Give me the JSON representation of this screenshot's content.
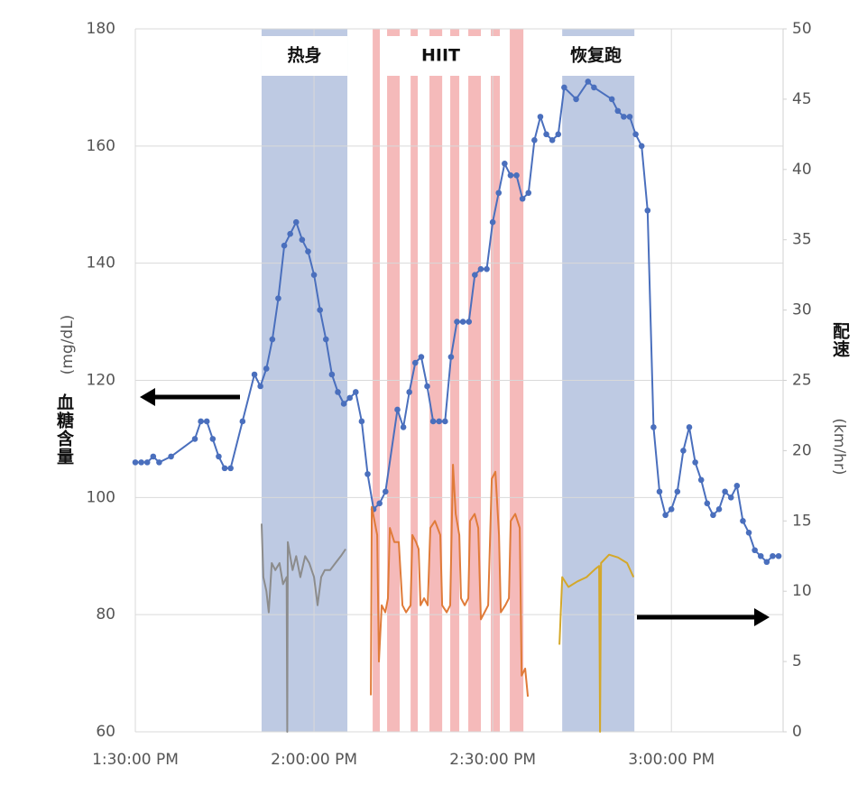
{
  "chart_data": {
    "type": "line",
    "y_label": "血糖含量",
    "y_unit": "(mg/dL)",
    "y2_label": "配速",
    "y2_unit": "(km/hr)",
    "xlim": [
      "13:30:00",
      "15:18:45"
    ],
    "xticks": [
      {
        "value": "13:30:00",
        "label": "1:30:00 PM"
      },
      {
        "value": "14:00:00",
        "label": "2:00:00 PM"
      },
      {
        "value": "14:30:00",
        "label": "2:30:00 PM"
      },
      {
        "value": "15:00:00",
        "label": "3:00:00 PM"
      }
    ],
    "ylim": [
      60,
      180
    ],
    "yticks": [
      60,
      80,
      100,
      120,
      140,
      160,
      180
    ],
    "y2lim": [
      0,
      50
    ],
    "y2ticks": [
      0,
      5,
      10,
      15,
      20,
      25,
      30,
      35,
      40,
      45,
      50
    ],
    "grid": true,
    "annotations": [
      {
        "text": "热身"
      },
      {
        "text": "HIIT"
      },
      {
        "text": "恢复跑"
      }
    ],
    "bands": [
      {
        "start": "13:51:12",
        "end": "14:05:36",
        "color": "#b7c4e0"
      },
      {
        "start": "14:09:51",
        "end": "14:11:03",
        "color": "#f4b3b3"
      },
      {
        "start": "14:12:16",
        "end": "14:14:23",
        "color": "#f4b3b3"
      },
      {
        "start": "14:16:13",
        "end": "14:17:25",
        "color": "#f4b3b3"
      },
      {
        "start": "14:19:23",
        "end": "14:21:31",
        "color": "#f4b3b3"
      },
      {
        "start": "14:22:52",
        "end": "14:24:23",
        "color": "#f4b3b3"
      },
      {
        "start": "14:25:54",
        "end": "14:28:01",
        "color": "#f4b3b3"
      },
      {
        "start": "14:29:41",
        "end": "14:31:12",
        "color": "#f4b3b3"
      },
      {
        "start": "14:32:52",
        "end": "14:35:09",
        "color": "#f4b3b3"
      },
      {
        "start": "14:41:40",
        "end": "14:53:47",
        "color": "#b7c4e0"
      }
    ],
    "series": [
      {
        "color": "#4a6fbd",
        "markers": true,
        "x": [
          "13:30:00",
          "13:31:00",
          "13:32:00",
          "13:33:00",
          "13:34:00",
          "13:36:00",
          "13:40:00",
          "13:41:00",
          "13:42:00",
          "13:43:00",
          "13:44:00",
          "13:45:00",
          "13:46:00",
          "13:48:00",
          "13:50:00",
          "13:51:00",
          "13:52:00",
          "13:53:00",
          "13:54:00",
          "13:55:00",
          "13:56:00",
          "13:57:00",
          "13:58:00",
          "13:59:00",
          "14:00:00",
          "14:01:00",
          "14:02:00",
          "14:03:00",
          "14:04:00",
          "14:05:00",
          "14:06:00",
          "14:07:00",
          "14:08:00",
          "14:09:00",
          "14:10:00",
          "14:11:00",
          "14:12:00",
          "14:14:00",
          "14:15:00",
          "14:16:00",
          "14:17:00",
          "14:18:00",
          "14:19:00",
          "14:20:00",
          "14:21:00",
          "14:22:00",
          "14:23:00",
          "14:24:00",
          "14:25:00",
          "14:26:00",
          "14:27:00",
          "14:28:00",
          "14:29:00",
          "14:30:00",
          "14:31:00",
          "14:32:00",
          "14:33:00",
          "14:34:00",
          "14:35:00",
          "14:36:00",
          "14:37:00",
          "14:38:00",
          "14:39:00",
          "14:40:00",
          "14:41:00",
          "14:42:00",
          "14:44:00",
          "14:46:00",
          "14:47:00",
          "14:50:00",
          "14:51:00",
          "14:52:00",
          "14:53:00",
          "14:54:00",
          "14:55:00",
          "14:56:00",
          "14:57:00",
          "14:58:00",
          "14:59:00",
          "15:00:00",
          "15:01:00",
          "15:02:00",
          "15:03:00",
          "15:04:00",
          "15:05:00",
          "15:06:00",
          "15:07:00",
          "15:08:00",
          "15:09:00",
          "15:10:00",
          "15:11:00",
          "15:12:00",
          "15:13:00",
          "15:14:00",
          "15:15:00",
          "15:16:00",
          "15:17:00",
          "15:18:00"
        ],
        "values": [
          106,
          106,
          106,
          107,
          106,
          107,
          110,
          113,
          113,
          110,
          107,
          105,
          105,
          113,
          121,
          119,
          122,
          127,
          134,
          143,
          145,
          147,
          144,
          142,
          138,
          132,
          127,
          121,
          118,
          116,
          117,
          118,
          113,
          104,
          98,
          99,
          101,
          115,
          112,
          118,
          123,
          124,
          119,
          113,
          113,
          113,
          124,
          130,
          130,
          130,
          138,
          139,
          139,
          147,
          152,
          157,
          155,
          155,
          151,
          152,
          161,
          165,
          162,
          161,
          162,
          170,
          168,
          171,
          170,
          168,
          166,
          165,
          165,
          162,
          160,
          149,
          112,
          101,
          97,
          98,
          101,
          108,
          112,
          106,
          103,
          99,
          97,
          98,
          101,
          100,
          102,
          96,
          94,
          91,
          90,
          89,
          90,
          90
        ]
      },
      {
        "color": "#8c8c8c",
        "axis": "y2",
        "x": [
          "13:51:12",
          "13:51:30",
          "13:52:00",
          "13:52:24",
          "13:52:54",
          "13:53:30",
          "13:54:12",
          "13:54:48",
          "13:55:24",
          "13:55:30",
          "13:55:36",
          "13:56:24",
          "13:57:00",
          "13:57:42",
          "13:58:30",
          "13:59:12",
          "14:00:00",
          "14:00:36",
          "14:01:12",
          "14:01:48",
          "14:02:42",
          "14:03:36",
          "14:04:30",
          "14:05:18"
        ],
        "values": [
          14.8,
          11,
          10,
          8.5,
          12,
          11.5,
          12,
          10.5,
          11,
          0,
          13.5,
          11.5,
          12.5,
          11,
          12.5,
          12,
          11,
          9,
          11,
          11.5,
          11.5,
          12,
          12.5,
          13
        ]
      },
      {
        "color": "#e07b39",
        "axis": "y2",
        "x": [
          "14:09:33",
          "14:09:42",
          "14:10:09",
          "14:10:36",
          "14:10:54",
          "14:11:22",
          "14:11:58",
          "14:12:25",
          "14:12:44",
          "14:13:29",
          "14:14:14",
          "14:14:51",
          "14:15:27",
          "14:16:13",
          "14:16:31",
          "14:17:07",
          "14:17:34",
          "14:17:53",
          "14:18:29",
          "14:19:05",
          "14:19:32",
          "14:20:18",
          "14:21:12",
          "14:21:31",
          "14:22:16",
          "14:22:52",
          "14:23:20",
          "14:23:47",
          "14:24:23",
          "14:24:41",
          "14:25:18",
          "14:25:54",
          "14:26:12",
          "14:26:58",
          "14:27:34",
          "14:28:01",
          "14:28:38",
          "14:29:14",
          "14:29:51",
          "14:30:27",
          "14:31:03",
          "14:31:21",
          "14:32:07",
          "14:32:43",
          "14:33:01",
          "14:33:47",
          "14:34:32",
          "14:34:51",
          "14:35:27",
          "14:35:54"
        ],
        "values": [
          2.6,
          16,
          15,
          14,
          5,
          9,
          8.5,
          9.5,
          14.5,
          13.5,
          13.5,
          9,
          8.5,
          9,
          14,
          13.5,
          13,
          9,
          9.5,
          9,
          14.5,
          15,
          14,
          9,
          8.5,
          9,
          19,
          15.5,
          14,
          9.5,
          9,
          9.5,
          15,
          15.5,
          14.5,
          8,
          8.5,
          9,
          18,
          18.5,
          14,
          8.5,
          9,
          9.5,
          15,
          15.5,
          14.5,
          4,
          4.5,
          2.5
        ]
      },
      {
        "color": "#d4a82a",
        "axis": "y2",
        "x": [
          "14:41:12",
          "14:41:40",
          "14:42:43",
          "14:44:14",
          "14:45:45",
          "14:47:16",
          "14:47:52",
          "14:48:01",
          "14:48:11",
          "14:49:32",
          "14:51:03",
          "14:52:34",
          "14:53:38"
        ],
        "values": [
          6.2,
          11,
          10.3,
          10.7,
          11,
          11.6,
          11.8,
          0,
          12,
          12.6,
          12.4,
          12,
          11
        ]
      }
    ]
  }
}
